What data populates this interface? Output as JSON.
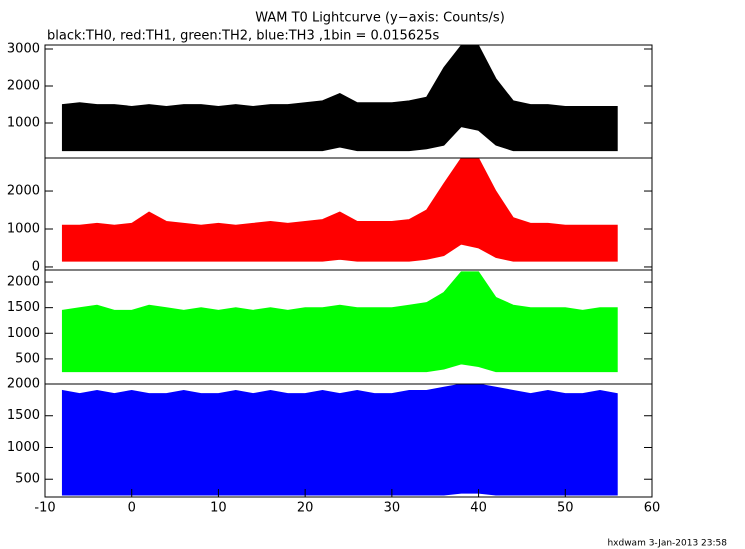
{
  "chart_data": [
    {
      "type": "area",
      "title": "WAM T0 Lightcurve (y−axis: Counts/s)",
      "subtitle": "black:TH0, red:TH1, green:TH2, blue:TH3 ,1bin = 0.015625s",
      "color": "#000000",
      "x": [
        -8,
        -6,
        -4,
        -2,
        0,
        2,
        4,
        6,
        8,
        10,
        12,
        14,
        16,
        18,
        20,
        22,
        24,
        26,
        28,
        30,
        32,
        34,
        36,
        38,
        40,
        42,
        44,
        46,
        48,
        50,
        52,
        54,
        56
      ],
      "series": [
        {
          "values": [
            1500,
            1550,
            1500,
            1500,
            1450,
            1500,
            1450,
            1500,
            1500,
            1450,
            1500,
            1450,
            1500,
            1500,
            1550,
            1600,
            1800,
            1550,
            1550,
            1550,
            1600,
            1700,
            2500,
            3100,
            3100,
            2200,
            1600,
            1500,
            1500,
            1450,
            1450,
            1450,
            1450
          ]
        },
        {
          "values": [
            250,
            250,
            250,
            250,
            250,
            250,
            250,
            250,
            250,
            250,
            250,
            250,
            250,
            250,
            250,
            250,
            350,
            250,
            250,
            250,
            250,
            300,
            400,
            900,
            800,
            400,
            250,
            250,
            250,
            250,
            250,
            250,
            250
          ]
        }
      ],
      "xlim": [
        -10,
        60
      ],
      "ylim": [
        54,
        3108
      ],
      "yticks": [
        1000,
        2000,
        3000
      ]
    },
    {
      "type": "area",
      "color": "#ff0000",
      "x": [
        -8,
        -6,
        -4,
        -2,
        0,
        2,
        4,
        6,
        8,
        10,
        12,
        14,
        16,
        18,
        20,
        22,
        24,
        26,
        28,
        30,
        32,
        34,
        36,
        38,
        40,
        42,
        44,
        46,
        48,
        50,
        52,
        54,
        56
      ],
      "series": [
        {
          "values": [
            1100,
            1100,
            1150,
            1100,
            1150,
            1450,
            1200,
            1150,
            1100,
            1150,
            1100,
            1150,
            1200,
            1150,
            1200,
            1250,
            1450,
            1200,
            1200,
            1200,
            1250,
            1500,
            2200,
            2870,
            2870,
            2000,
            1300,
            1150,
            1150,
            1100,
            1100,
            1100,
            1100
          ]
        },
        {
          "values": [
            150,
            150,
            150,
            150,
            150,
            150,
            150,
            150,
            150,
            150,
            150,
            150,
            150,
            150,
            150,
            150,
            200,
            150,
            150,
            150,
            150,
            200,
            300,
            600,
            500,
            250,
            150,
            150,
            150,
            150,
            150,
            150,
            150
          ]
        }
      ],
      "xlim": [
        -10,
        60
      ],
      "ylim": [
        -80,
        2870
      ],
      "yticks": [
        0,
        1000,
        2000
      ]
    },
    {
      "type": "area",
      "color": "#00ff00",
      "x": [
        -8,
        -6,
        -4,
        -2,
        0,
        2,
        4,
        6,
        8,
        10,
        12,
        14,
        16,
        18,
        20,
        22,
        24,
        26,
        28,
        30,
        32,
        34,
        36,
        38,
        40,
        42,
        44,
        46,
        48,
        50,
        52,
        54,
        56
      ],
      "series": [
        {
          "values": [
            1450,
            1500,
            1550,
            1450,
            1450,
            1550,
            1500,
            1450,
            1500,
            1450,
            1500,
            1450,
            1500,
            1450,
            1500,
            1500,
            1550,
            1500,
            1500,
            1500,
            1550,
            1600,
            1800,
            2200,
            2200,
            1700,
            1550,
            1500,
            1500,
            1500,
            1450,
            1500,
            1500
          ]
        },
        {
          "values": [
            250,
            250,
            250,
            250,
            250,
            250,
            250,
            250,
            250,
            250,
            250,
            250,
            250,
            250,
            250,
            250,
            250,
            250,
            250,
            250,
            250,
            250,
            300,
            400,
            350,
            250,
            250,
            250,
            250,
            250,
            250,
            250,
            250
          ]
        }
      ],
      "xlim": [
        -10,
        60
      ],
      "ylim": [
        10,
        2235
      ],
      "yticks": [
        500,
        1000,
        1500,
        2000
      ]
    },
    {
      "type": "area",
      "color": "#0000ff",
      "x": [
        -8,
        -6,
        -4,
        -2,
        0,
        2,
        4,
        6,
        8,
        10,
        12,
        14,
        16,
        18,
        20,
        22,
        24,
        26,
        28,
        30,
        32,
        34,
        36,
        38,
        40,
        42,
        44,
        46,
        48,
        50,
        52,
        54,
        56
      ],
      "series": [
        {
          "values": [
            1900,
            1850,
            1900,
            1850,
            1900,
            1850,
            1850,
            1900,
            1850,
            1850,
            1900,
            1850,
            1900,
            1850,
            1850,
            1900,
            1850,
            1900,
            1850,
            1850,
            1900,
            1900,
            1950,
            2000,
            2000,
            1950,
            1900,
            1850,
            1900,
            1850,
            1850,
            1900,
            1850
          ]
        },
        {
          "values": [
            250,
            250,
            250,
            250,
            250,
            250,
            250,
            250,
            250,
            250,
            250,
            250,
            250,
            250,
            250,
            250,
            250,
            250,
            250,
            250,
            250,
            250,
            250,
            280,
            280,
            250,
            250,
            250,
            250,
            250,
            250,
            250,
            250
          ]
        }
      ],
      "xlim": [
        -10,
        60
      ],
      "ylim": [
        220,
        2000
      ],
      "yticks": [
        500,
        1000,
        1500,
        2000
      ],
      "xticks": [
        -10,
        0,
        10,
        20,
        30,
        40,
        50,
        60
      ]
    }
  ],
  "footer": "hxdwam  3-Jan-2013 23:58"
}
